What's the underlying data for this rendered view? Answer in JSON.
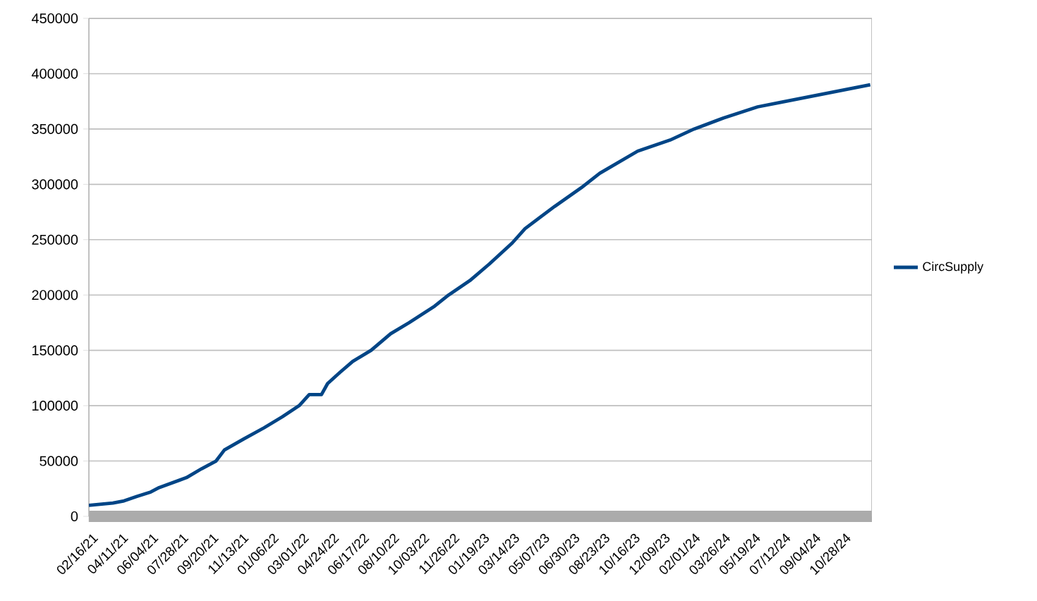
{
  "chart_data": {
    "type": "line",
    "x": [
      "2021-02-16",
      "2021-03-31",
      "2021-04-20",
      "2021-05-13",
      "2021-06-07",
      "2021-06-22",
      "2021-08-10",
      "2021-09-06",
      "2021-10-02",
      "2021-10-17",
      "2021-11-21",
      "2021-12-27",
      "2022-01-29",
      "2022-02-28",
      "2022-03-18",
      "2022-04-09",
      "2022-04-20",
      "2022-05-12",
      "2022-06-04",
      "2022-07-07",
      "2022-08-11",
      "2022-09-13",
      "2022-10-29",
      "2022-11-23",
      "2022-12-31",
      "2023-02-04",
      "2023-03-17",
      "2023-04-09",
      "2023-06-01",
      "2023-07-19",
      "2023-08-21",
      "2023-10-28",
      "2023-12-25",
      "2024-02-06",
      "2024-03-30",
      "2024-05-30",
      "2024-07-10",
      "2024-12-18"
    ],
    "series": [
      {
        "name": "CircSupply",
        "color": "#004586",
        "values": [
          10000,
          12000,
          14000,
          18000,
          22000,
          26000,
          35000,
          43000,
          50000,
          60000,
          70000,
          80000,
          90000,
          100000,
          110000,
          110000,
          120000,
          130000,
          140000,
          150000,
          165000,
          175000,
          190000,
          200000,
          213000,
          228000,
          247000,
          260000,
          280000,
          297000,
          310000,
          330000,
          340000,
          350000,
          360000,
          370000,
          374000,
          390000
        ]
      }
    ],
    "xlim": [
      "2021-02-16",
      "2024-12-21"
    ],
    "xticks": [
      {
        "value": "2021-02-16",
        "label": "02/16/21"
      },
      {
        "value": "2021-04-11",
        "label": "04/11/21"
      },
      {
        "value": "2021-06-04",
        "label": "06/04/21"
      },
      {
        "value": "2021-07-28",
        "label": "07/28/21"
      },
      {
        "value": "2021-09-20",
        "label": "09/20/21"
      },
      {
        "value": "2021-11-13",
        "label": "11/13/21"
      },
      {
        "value": "2022-01-06",
        "label": "01/06/22"
      },
      {
        "value": "2022-03-01",
        "label": "03/01/22"
      },
      {
        "value": "2022-04-24",
        "label": "04/24/22"
      },
      {
        "value": "2022-06-17",
        "label": "06/17/22"
      },
      {
        "value": "2022-08-10",
        "label": "08/10/22"
      },
      {
        "value": "2022-10-03",
        "label": "10/03/22"
      },
      {
        "value": "2022-11-26",
        "label": "11/26/22"
      },
      {
        "value": "2023-01-19",
        "label": "01/19/23"
      },
      {
        "value": "2023-03-14",
        "label": "03/14/23"
      },
      {
        "value": "2023-05-07",
        "label": "05/07/23"
      },
      {
        "value": "2023-06-30",
        "label": "06/30/23"
      },
      {
        "value": "2023-08-23",
        "label": "08/23/23"
      },
      {
        "value": "2023-10-16",
        "label": "10/16/23"
      },
      {
        "value": "2023-12-09",
        "label": "12/09/23"
      },
      {
        "value": "2024-02-01",
        "label": "02/01/24"
      },
      {
        "value": "2024-03-26",
        "label": "03/26/24"
      },
      {
        "value": "2024-05-19",
        "label": "05/19/24"
      },
      {
        "value": "2024-07-12",
        "label": "07/12/24"
      },
      {
        "value": "2024-09-04",
        "label": "09/04/24"
      },
      {
        "value": "2024-10-28",
        "label": "10/28/24"
      }
    ],
    "ylim": [
      0,
      450000
    ],
    "yticks": [
      0,
      50000,
      100000,
      150000,
      200000,
      250000,
      300000,
      350000,
      400000,
      450000
    ],
    "grid": "y",
    "legend": "right",
    "marker": "none",
    "line_style": "solid"
  }
}
